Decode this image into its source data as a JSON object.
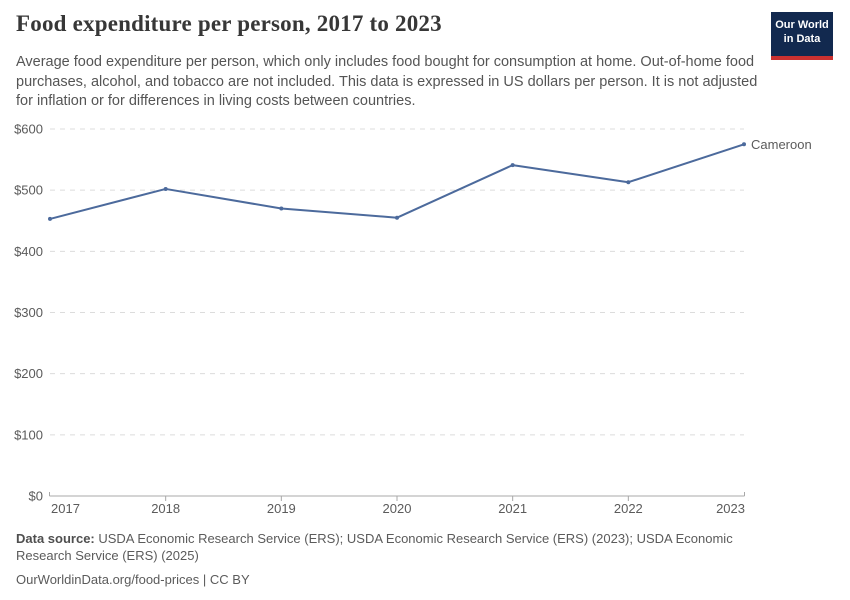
{
  "header": {
    "title": "Food expenditure per person, 2017 to 2023",
    "subtitle": "Average food expenditure per person, which only includes food bought for consumption at home. Out-of-home food purchases, alcohol, and tobacco are not included. This data is expressed in US dollars per person. It is not adjusted for inflation or for differences in living costs between countries.",
    "logo": {
      "line1": "Our World",
      "line2": "in Data",
      "bg_color": "#12294f",
      "accent_color": "#cb3130"
    }
  },
  "chart_data": {
    "type": "line",
    "title": "Food expenditure per person, 2017 to 2023",
    "x": [
      2017,
      2018,
      2019,
      2020,
      2021,
      2022,
      2023
    ],
    "x_tick_labels": [
      "2017",
      "2018",
      "2019",
      "2020",
      "2021",
      "2022",
      "2023"
    ],
    "series": [
      {
        "name": "Cameroon",
        "color": "#4c6a9c",
        "values": [
          453,
          502,
          470,
          455,
          541,
          513,
          575
        ]
      }
    ],
    "ylim": [
      0,
      600
    ],
    "y_ticks": [
      0,
      100,
      200,
      300,
      400,
      500,
      600
    ],
    "y_tick_prefix": "$",
    "xlabel": "",
    "ylabel": "US dollars per person",
    "grid": "horizontal-dashed",
    "legend_position": "end-of-line-label",
    "colors": {
      "grid": "#dcdcdc",
      "axis": "#a8a8a8",
      "tick_text": "#5b5b5b"
    }
  },
  "footer": {
    "data_source_label": "Data source:",
    "data_source_text": " USDA Economic Research Service (ERS); USDA Economic Research Service (ERS) (2023); USDA Economic Research Service (ERS) (2025)",
    "attribution": "OurWorldinData.org/food-prices | CC BY"
  }
}
